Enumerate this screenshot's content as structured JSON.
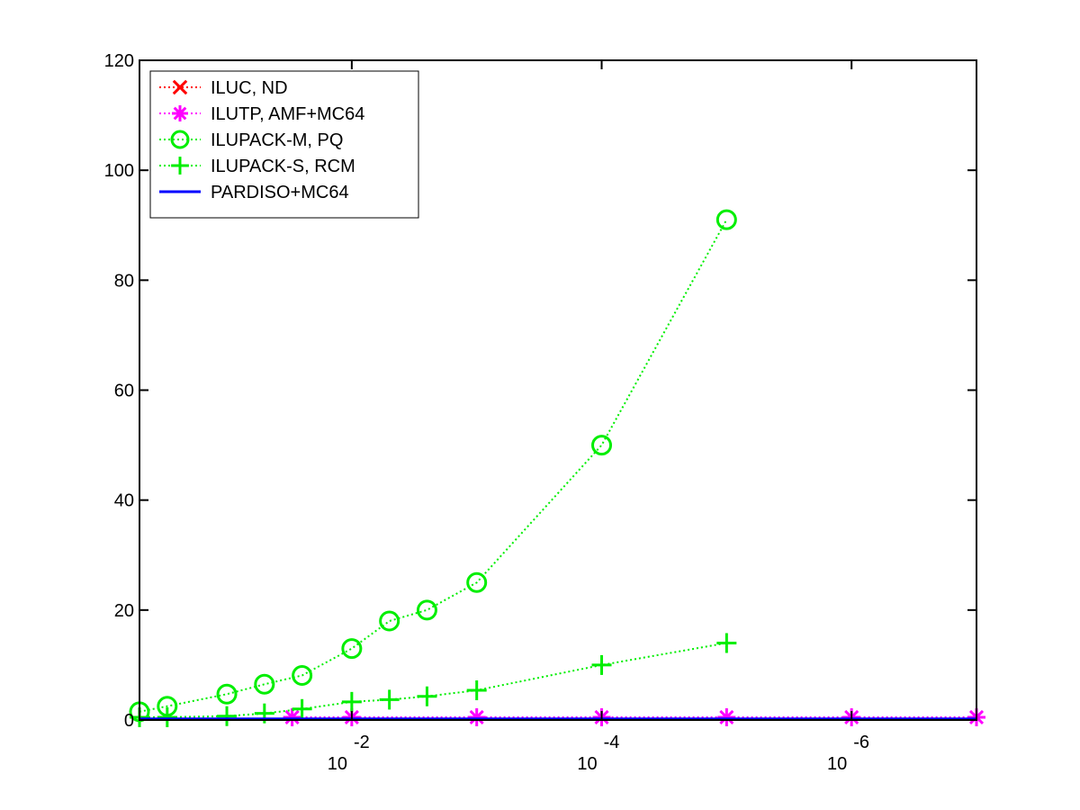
{
  "chart_data": {
    "type": "line",
    "title": "",
    "xlabel": "",
    "ylabel": "",
    "x_scale": "log",
    "x_direction": "decreasing",
    "xlim": [
      0.5,
      1e-07
    ],
    "ylim": [
      0,
      120
    ],
    "y_ticks": [
      0,
      20,
      40,
      60,
      80,
      100,
      120
    ],
    "x_ticks": [
      {
        "value": 0.01,
        "base": "10",
        "exponent": "-2"
      },
      {
        "value": 0.0001,
        "base": "10",
        "exponent": "-4"
      },
      {
        "value": 1e-06,
        "base": "10",
        "exponent": "-6"
      }
    ],
    "grid": false,
    "legend_position": "top-left",
    "series": [
      {
        "name": "ILUC,  ND",
        "color": "#ff0000",
        "marker": "x",
        "line_style": "dotted",
        "points": []
      },
      {
        "name": "ILUTP, AMF+MC64",
        "color": "#ff00ff",
        "marker": "asterisk",
        "line_style": "dotted",
        "points": [
          {
            "x": 0.03,
            "y": 0.5
          },
          {
            "x": 0.01,
            "y": 0.5
          },
          {
            "x": 0.001,
            "y": 0.5
          },
          {
            "x": 0.0001,
            "y": 0.5
          },
          {
            "x": 1e-05,
            "y": 0.5
          },
          {
            "x": 1e-06,
            "y": 0.5
          },
          {
            "x": 1e-07,
            "y": 0.5
          }
        ]
      },
      {
        "name": "ILUPACK-M, PQ",
        "color": "#00ee00",
        "marker": "circle",
        "line_style": "dotted",
        "points": [
          {
            "x": 0.5,
            "y": 1.5
          },
          {
            "x": 0.3,
            "y": 2.5
          },
          {
            "x": 0.1,
            "y": 4.7
          },
          {
            "x": 0.05,
            "y": 6.5
          },
          {
            "x": 0.025,
            "y": 8.1
          },
          {
            "x": 0.01,
            "y": 13
          },
          {
            "x": 0.005,
            "y": 18
          },
          {
            "x": 0.0025,
            "y": 20
          },
          {
            "x": 0.001,
            "y": 25
          },
          {
            "x": 0.0001,
            "y": 50
          },
          {
            "x": 1e-05,
            "y": 91
          }
        ]
      },
      {
        "name": "ILUPACK-S, RCM",
        "color": "#00ee00",
        "marker": "plus",
        "line_style": "dotted",
        "points": [
          {
            "x": 0.5,
            "y": 0.5
          },
          {
            "x": 0.3,
            "y": 0.5
          },
          {
            "x": 0.1,
            "y": 0.7
          },
          {
            "x": 0.05,
            "y": 1.2
          },
          {
            "x": 0.025,
            "y": 2.0
          },
          {
            "x": 0.01,
            "y": 3.3
          },
          {
            "x": 0.005,
            "y": 3.7
          },
          {
            "x": 0.0025,
            "y": 4.3
          },
          {
            "x": 0.001,
            "y": 5.4
          },
          {
            "x": 0.0001,
            "y": 10
          },
          {
            "x": 1e-05,
            "y": 14
          }
        ]
      },
      {
        "name": "PARDISO+MC64",
        "color": "#0000ff",
        "marker": "none",
        "line_style": "solid",
        "points": [
          {
            "x": 0.5,
            "y": 0.2
          },
          {
            "x": 1e-07,
            "y": 0.2
          }
        ]
      }
    ]
  }
}
